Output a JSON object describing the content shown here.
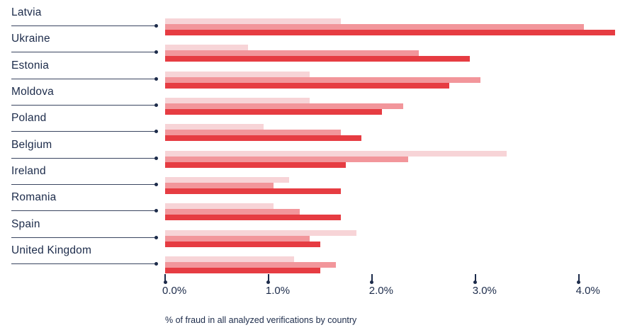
{
  "chart_data": {
    "type": "bar",
    "orientation": "horizontal",
    "title": "",
    "xlabel": "% of fraud in all analyzed verifications by country",
    "ylabel": "",
    "x_ticks": [
      "0.0%",
      "1.0%",
      "2.0%",
      "3.0%",
      "4.0%"
    ],
    "xlim": [
      0,
      4.45
    ],
    "grid": false,
    "legend_position": "none",
    "categories": [
      "Latvia",
      "Ukraine",
      "Estonia",
      "Moldova",
      "Poland",
      "Belgium",
      "Ireland",
      "Romania",
      "Spain",
      "United Kingdom"
    ],
    "series": [
      {
        "name": "light-pink",
        "color": "#f7d4d7",
        "values": [
          1.7,
          0.8,
          1.4,
          1.4,
          0.95,
          3.3,
          1.2,
          1.05,
          1.85,
          1.25
        ]
      },
      {
        "name": "salmon",
        "color": "#f2969b",
        "values": [
          4.05,
          2.45,
          3.05,
          2.3,
          1.7,
          2.35,
          1.05,
          1.3,
          1.4,
          1.65
        ]
      },
      {
        "name": "red",
        "color": "#e63c42",
        "values": [
          4.35,
          2.95,
          2.75,
          2.1,
          1.9,
          1.75,
          1.7,
          1.7,
          1.5,
          1.5
        ]
      }
    ]
  },
  "colors": {
    "text_navy": "#1c2b4a",
    "leader_line": "#3a4560"
  }
}
